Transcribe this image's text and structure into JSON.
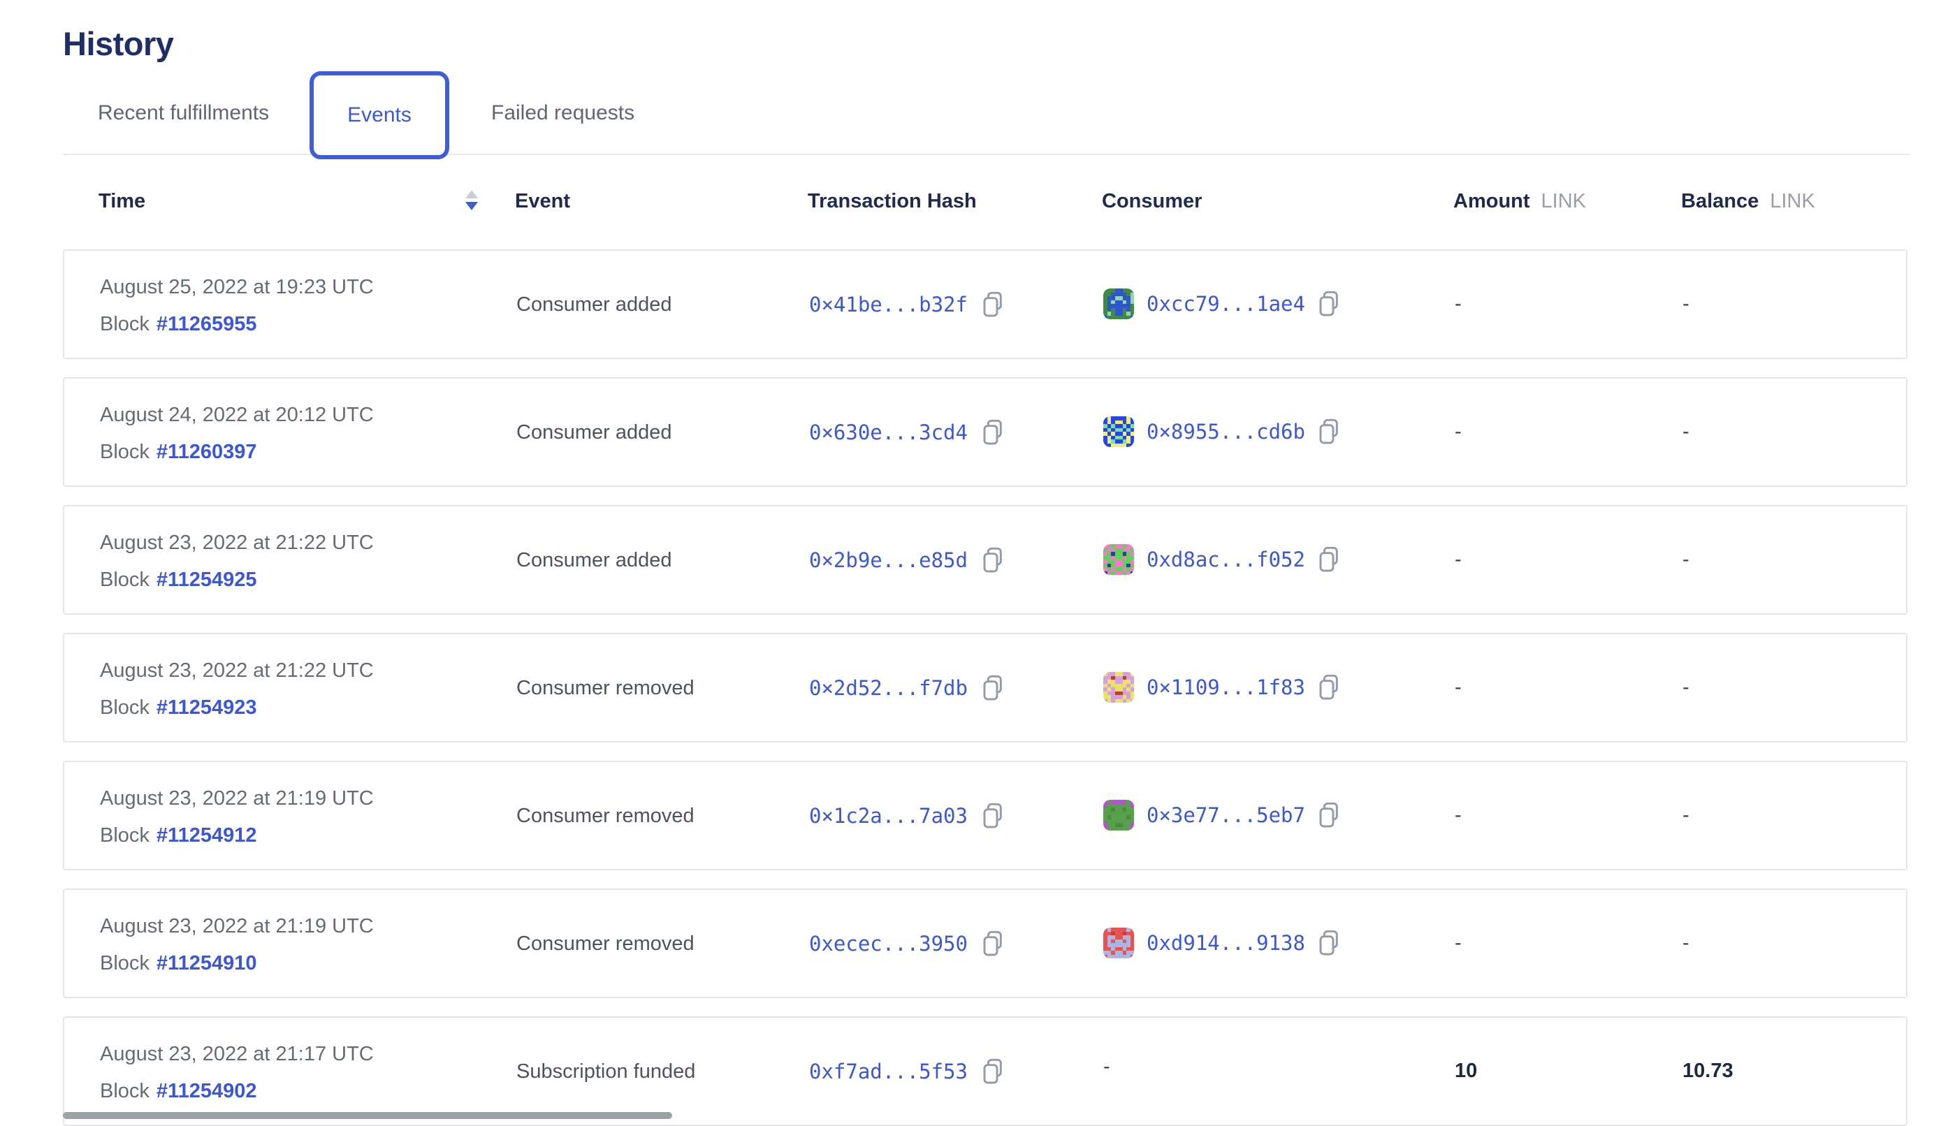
{
  "page": {
    "title": "History"
  },
  "tabs": {
    "recent": {
      "label": "Recent fulfillments",
      "active": false
    },
    "events": {
      "label": "Events",
      "active": true
    },
    "failed": {
      "label": "Failed requests",
      "active": false
    }
  },
  "table": {
    "headers": {
      "time": "Time",
      "event": "Event",
      "tx": "Transaction Hash",
      "consumer": "Consumer",
      "amount": "Amount",
      "balance": "Balance",
      "unit": "LINK"
    },
    "sort": {
      "column": "time",
      "direction": "descending"
    },
    "rows": [
      {
        "date": "August 25, 2022 at 19:23 UTC",
        "block_label": "Block",
        "block_number": "#11265955",
        "event": "Consumer added",
        "tx_hash": "0×41be...b32f",
        "consumer_address": "0xcc79...1ae4",
        "identicon": {
          "palette": {
            "g": "#3e8c41",
            "b": "#2f55cd",
            "t": "#93d3b2"
          },
          "grid": [
            "gggbbggg",
            "ggbbbbgt",
            "gbbttbbt",
            "gbtbbtbt",
            "gbbbbbbg",
            "gbgbbgbg",
            "gtgbbgtg",
            "bggggggb"
          ]
        },
        "amount": "-",
        "balance": "-"
      },
      {
        "date": "August 24, 2022 at 20:12 UTC",
        "block_label": "Block",
        "block_number": "#11260397",
        "event": "Consumer added",
        "tx_hash": "0×630e...3cd4",
        "consumer_address": "0×8955...cd6b",
        "identicon": {
          "palette": {
            "b": "#2743ec",
            "y": "#f0ee71",
            "t": "#7adfa9"
          },
          "grid": [
            "bybbbbyb",
            "bybyybyb",
            "tbtbbtbt",
            "btbttbtb",
            "ybybbyby",
            "bybttbyb",
            "bytbbtyb",
            "bbyyyybb"
          ]
        },
        "amount": "-",
        "balance": "-"
      },
      {
        "date": "August 23, 2022 at 21:22 UTC",
        "block_label": "Block",
        "block_number": "#11254925",
        "event": "Consumer added",
        "tx_hash": "0×2b9e...e85d",
        "consumer_address": "0xd8ac...f052",
        "identicon": {
          "palette": {
            "g": "#62d05e",
            "p": "#f07ec2",
            "n": "#2b3f9e"
          },
          "grid": [
            "ppgppgpp",
            "gppggppg",
            "pgnggngp",
            "ggpggpgg",
            "pggppggp",
            "gngppgng",
            "pgpggpgp",
            "npgppgpn"
          ]
        },
        "amount": "-",
        "balance": "-"
      },
      {
        "date": "August 23, 2022 at 21:22 UTC",
        "block_label": "Block",
        "block_number": "#11254923",
        "event": "Consumer removed",
        "tx_hash": "0×2d52...f7db",
        "consumer_address": "0×1109...1f83",
        "identicon": {
          "palette": {
            "l": "#d5a1dd",
            "y": "#ece26a",
            "r": "#b4432a"
          },
          "grid": [
            "yllyylly",
            "llrllrll",
            "lyyllyyl",
            "ylyyyyly",
            "lylyylyl",
            "yllrrlly",
            "yylllyly",
            "lylyylyl"
          ]
        },
        "amount": "-",
        "balance": "-"
      },
      {
        "date": "August 23, 2022 at 21:19 UTC",
        "block_label": "Block",
        "block_number": "#11254912",
        "event": "Consumer removed",
        "tx_hash": "0×1c2a...7a03",
        "consumer_address": "0×3e77...5eb7",
        "identicon": {
          "palette": {
            "g": "#57a04c",
            "p": "#bb4fd4",
            "d": "#4a8a42"
          },
          "grid": [
            "pgppppgp",
            "pggggggp",
            "ggdggdgg",
            "gggggggg",
            "gdggggdg",
            "gggggggg",
            "pggddggp",
            "pggggggp"
          ]
        },
        "amount": "-",
        "balance": "-"
      },
      {
        "date": "August 23, 2022 at 21:19 UTC",
        "block_label": "Block",
        "block_number": "#11254910",
        "event": "Consumer removed",
        "tx_hash": "0xecec...3950",
        "consumer_address": "0xd914...9138",
        "identicon": {
          "palette": {
            "r": "#e25552",
            "w": "#a9b6e6",
            "d": "#c23f3e"
          },
          "grid": [
            "rwrrrrwr",
            "rrdrrdrr",
            "rwwrrwwr",
            "rwrwwrwr",
            "rwwwwwwr",
            "rrwrrwrr",
            "wwrwwrww",
            "rwwwwwwr"
          ]
        },
        "amount": "-",
        "balance": "-"
      },
      {
        "date": "August 23, 2022 at 21:17 UTC",
        "block_label": "Block",
        "block_number": "#11254902",
        "event": "Subscription funded",
        "tx_hash": "0xf7ad...5f53",
        "consumer_address": "-",
        "identicon": null,
        "amount": "10",
        "balance": "10.73"
      }
    ]
  },
  "icons": {
    "copy": "copy-icon",
    "sort": "sort-descending-icon"
  },
  "colors": {
    "accent_blue": "#3f5cd9",
    "link_blue": "#3b57d8",
    "title_navy": "#212e66",
    "header_navy": "#1f2a4e",
    "text_gray": "#646b75",
    "card_border": "#e3e5e9"
  }
}
